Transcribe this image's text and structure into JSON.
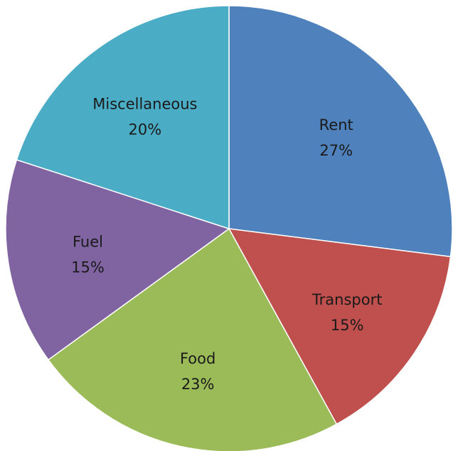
{
  "chart_data": {
    "type": "pie",
    "title": "",
    "start_angle_deg": 0,
    "direction": "clockwise",
    "slices": [
      {
        "label": "Rent",
        "value": 27,
        "value_label": "27%",
        "color": "#4f81bd"
      },
      {
        "label": "Transport",
        "value": 15,
        "value_label": "15%",
        "color": "#c0504d"
      },
      {
        "label": "Food",
        "value": 23,
        "value_label": "23%",
        "color": "#9bbb59"
      },
      {
        "label": "Fuel",
        "value": 15,
        "value_label": "15%",
        "color": "#8064a2"
      },
      {
        "label": "Miscellaneous",
        "value": 20,
        "value_label": "20%",
        "color": "#4bacc6"
      }
    ]
  }
}
